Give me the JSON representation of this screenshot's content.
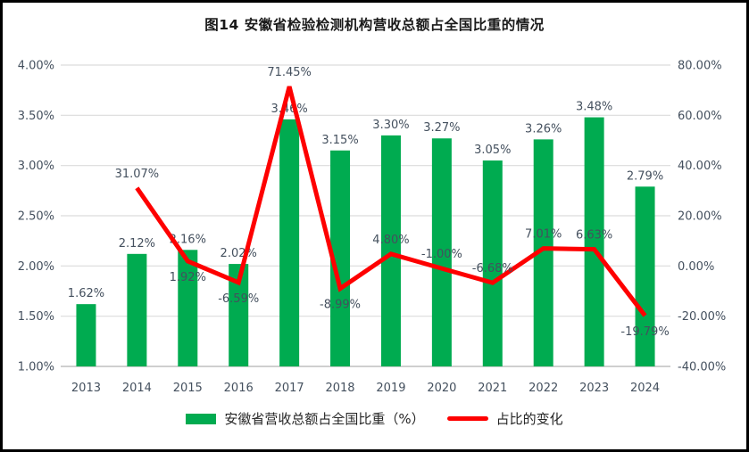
{
  "title": "图14 安徽省检验检测机构营收总额占全国比重的情况",
  "colors": {
    "bar": "#00AB50",
    "line": "#FE0000",
    "text": "#44505E",
    "grid": "#DCDCDC",
    "axis_line": "#BFBFBF",
    "title_text": "#1A1A1A"
  },
  "legend": [
    {
      "label": "安徽省营收总额占全国比重（%）",
      "type": "bar"
    },
    {
      "label": "占比的变化",
      "type": "line"
    }
  ],
  "chart_data": {
    "type": "combo",
    "title": "图14 安徽省检验检测机构营收总额占全国比重的情况",
    "categories": [
      "2013",
      "2014",
      "2015",
      "2016",
      "2017",
      "2018",
      "2019",
      "2020",
      "2021",
      "2022",
      "2023",
      "2024"
    ],
    "series": [
      {
        "name": "安徽省营收总额占全国比重（%）",
        "type": "bar",
        "axis": "left",
        "values": [
          1.62,
          2.12,
          2.16,
          2.02,
          3.46,
          3.15,
          3.3,
          3.27,
          3.05,
          3.26,
          3.48,
          2.79
        ],
        "labels": [
          "1.62%",
          "2.12%",
          "2.16%",
          "2.02%",
          "3.46%",
          "3.15%",
          "3.30%",
          "3.27%",
          "3.05%",
          "3.26%",
          "3.48%",
          "2.79%"
        ]
      },
      {
        "name": "占比的变化",
        "type": "line",
        "axis": "right",
        "values": [
          null,
          31.07,
          1.92,
          -6.59,
          71.45,
          -8.99,
          4.8,
          -1.0,
          -6.68,
          7.01,
          6.63,
          -19.79
        ],
        "labels": [
          null,
          "31.07%",
          "1.92%",
          "-6.59%",
          "71.45%",
          "-8.99%",
          "4.80%",
          "-1.00%",
          "-6.68%",
          "7.01%",
          "6.63%",
          "-19.79%"
        ],
        "label_side": [
          null,
          "above",
          "below",
          "below",
          "above",
          "below",
          "above",
          "above",
          "above",
          "above",
          "above",
          "below"
        ]
      }
    ],
    "left_axis": {
      "min": 1.0,
      "max": 4.0,
      "step": 0.5,
      "ticks_top_to_bottom": [
        "4.00%",
        "3.50%",
        "3.00%",
        "2.50%",
        "2.00%",
        "1.50%",
        "1.00%"
      ]
    },
    "right_axis": {
      "min": -40,
      "max": 80,
      "step": 20,
      "ticks_top_to_bottom": [
        "80.00%",
        "60.00%",
        "40.00%",
        "20.00%",
        "0.00%",
        "-20.00%",
        "-40.00%"
      ]
    },
    "grid": true,
    "legend_position": "bottom"
  }
}
